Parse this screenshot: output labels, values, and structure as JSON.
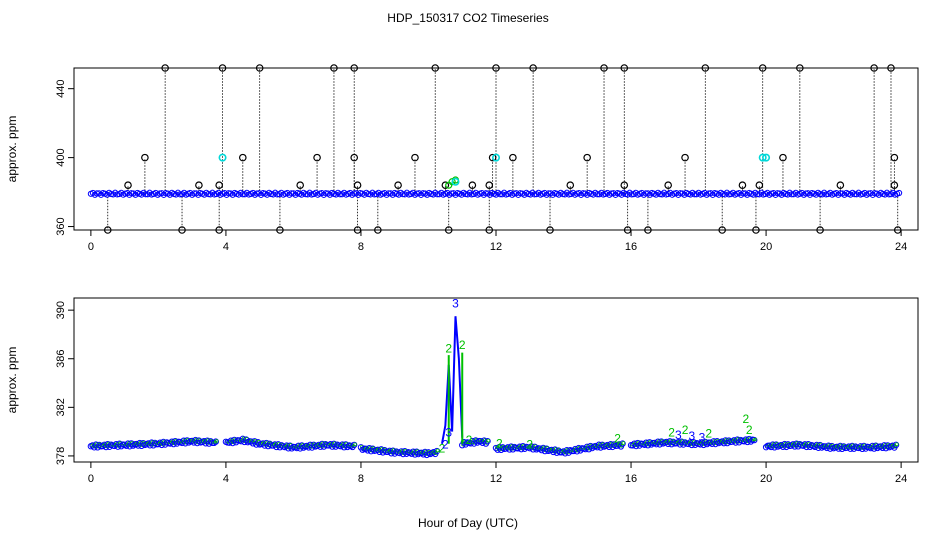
{
  "title": "HDP_150317  CO2 Timeseries",
  "xlabel": "Hour of Day (UTC)",
  "colors": {
    "black": "#000000",
    "blue": "#0000ff",
    "cyan": "#00d8d8",
    "green": "#00c000"
  },
  "chart_data": [
    {
      "type": "scatter",
      "ylabel": "approx. ppm",
      "xlim": [
        -0.5,
        24.5
      ],
      "ylim": [
        358,
        452
      ],
      "x_ticks": [
        0,
        4,
        8,
        12,
        16,
        20,
        24
      ],
      "y_ticks": [
        360,
        400,
        440
      ],
      "baseline": 379,
      "high_value": 452,
      "mid_value": 400,
      "mid2_value": 384,
      "low_value": 358,
      "spikes_high": [
        2.2,
        3.9,
        5.0,
        7.2,
        7.8,
        10.2,
        12.0,
        13.1,
        15.2,
        15.8,
        18.2,
        19.9,
        21.0,
        23.2,
        23.7
      ],
      "spikes_mid": [
        1.6,
        4.5,
        6.7,
        7.8,
        9.6,
        11.9,
        12.5,
        14.7,
        17.6,
        20.5,
        23.8
      ],
      "spikes_mid2": [
        1.1,
        3.2,
        3.8,
        6.2,
        7.9,
        9.1,
        10.5,
        11.3,
        11.8,
        14.2,
        15.8,
        17.1,
        19.3,
        19.8,
        22.2,
        23.8
      ],
      "spikes_low": [
        0.5,
        2.7,
        3.8,
        5.6,
        7.9,
        8.5,
        10.6,
        11.8,
        13.6,
        15.9,
        16.5,
        18.7,
        19.7,
        21.6,
        23.9
      ],
      "cyan_points": [
        [
          3.9,
          400
        ],
        [
          10.8,
          386
        ],
        [
          12.0,
          400
        ],
        [
          19.9,
          400
        ],
        [
          20.0,
          400
        ]
      ],
      "pulse_points": [
        [
          10.6,
          384
        ],
        [
          10.7,
          386
        ],
        [
          10.8,
          387
        ]
      ]
    },
    {
      "type": "scatter",
      "ylabel": "approx. ppm",
      "xlim": [
        -0.5,
        24.5
      ],
      "ylim": [
        377.5,
        391
      ],
      "x_ticks": [
        0,
        4,
        8,
        12,
        16,
        20,
        24
      ],
      "y_ticks": [
        378,
        382,
        386,
        390
      ],
      "segments": [
        {
          "x": [
            0,
            1,
            2,
            3,
            3.7
          ],
          "y": [
            378.8,
            378.9,
            379.0,
            379.2,
            379.1
          ]
        },
        {
          "x": [
            4,
            4.5,
            5,
            6,
            7,
            7.8
          ],
          "y": [
            379.1,
            379.3,
            379.0,
            378.7,
            378.9,
            378.8
          ]
        },
        {
          "x": [
            8,
            9,
            10,
            10.3
          ],
          "y": [
            378.6,
            378.3,
            378.2,
            378.3
          ]
        },
        {
          "x": [
            11,
            11.5,
            11.8
          ],
          "y": [
            379.0,
            379.2,
            379.1
          ]
        },
        {
          "x": [
            12,
            13,
            14,
            15,
            15.8
          ],
          "y": [
            378.6,
            378.7,
            378.3,
            378.8,
            378.9
          ]
        },
        {
          "x": [
            16,
            17,
            18,
            19,
            19.7
          ],
          "y": [
            378.9,
            379.1,
            379.0,
            379.2,
            379.3
          ]
        },
        {
          "x": [
            20,
            21,
            22,
            23,
            23.9
          ],
          "y": [
            378.8,
            378.9,
            378.7,
            378.7,
            378.8
          ]
        }
      ],
      "spike_x": [
        10.4,
        10.5,
        10.6,
        10.7,
        10.8,
        10.9,
        11.0
      ],
      "spike_y": [
        379.0,
        380.5,
        385.5,
        380.0,
        389.5,
        386.0,
        379.5
      ],
      "labels_blue": [
        [
          10.8,
          390.2,
          "3"
        ],
        [
          10.6,
          379.6,
          "3"
        ],
        [
          10.5,
          378.6,
          "2"
        ],
        [
          17.4,
          379.4,
          "3"
        ],
        [
          17.8,
          379.3,
          "3"
        ],
        [
          18.1,
          379.2,
          "3"
        ]
      ],
      "labels_green": [
        [
          10.6,
          386.5,
          "2"
        ],
        [
          11.0,
          386.8,
          "2"
        ],
        [
          10.4,
          378.3,
          "2"
        ],
        [
          15.6,
          379.1,
          "2"
        ],
        [
          17.2,
          379.6,
          "2"
        ],
        [
          17.6,
          379.8,
          "2"
        ],
        [
          18.3,
          379.5,
          "2"
        ],
        [
          19.4,
          380.7,
          "2"
        ],
        [
          19.5,
          379.8,
          "2"
        ],
        [
          11.2,
          379.0,
          "2"
        ],
        [
          12.1,
          378.7,
          "2"
        ],
        [
          13.0,
          378.6,
          "2"
        ]
      ]
    }
  ]
}
